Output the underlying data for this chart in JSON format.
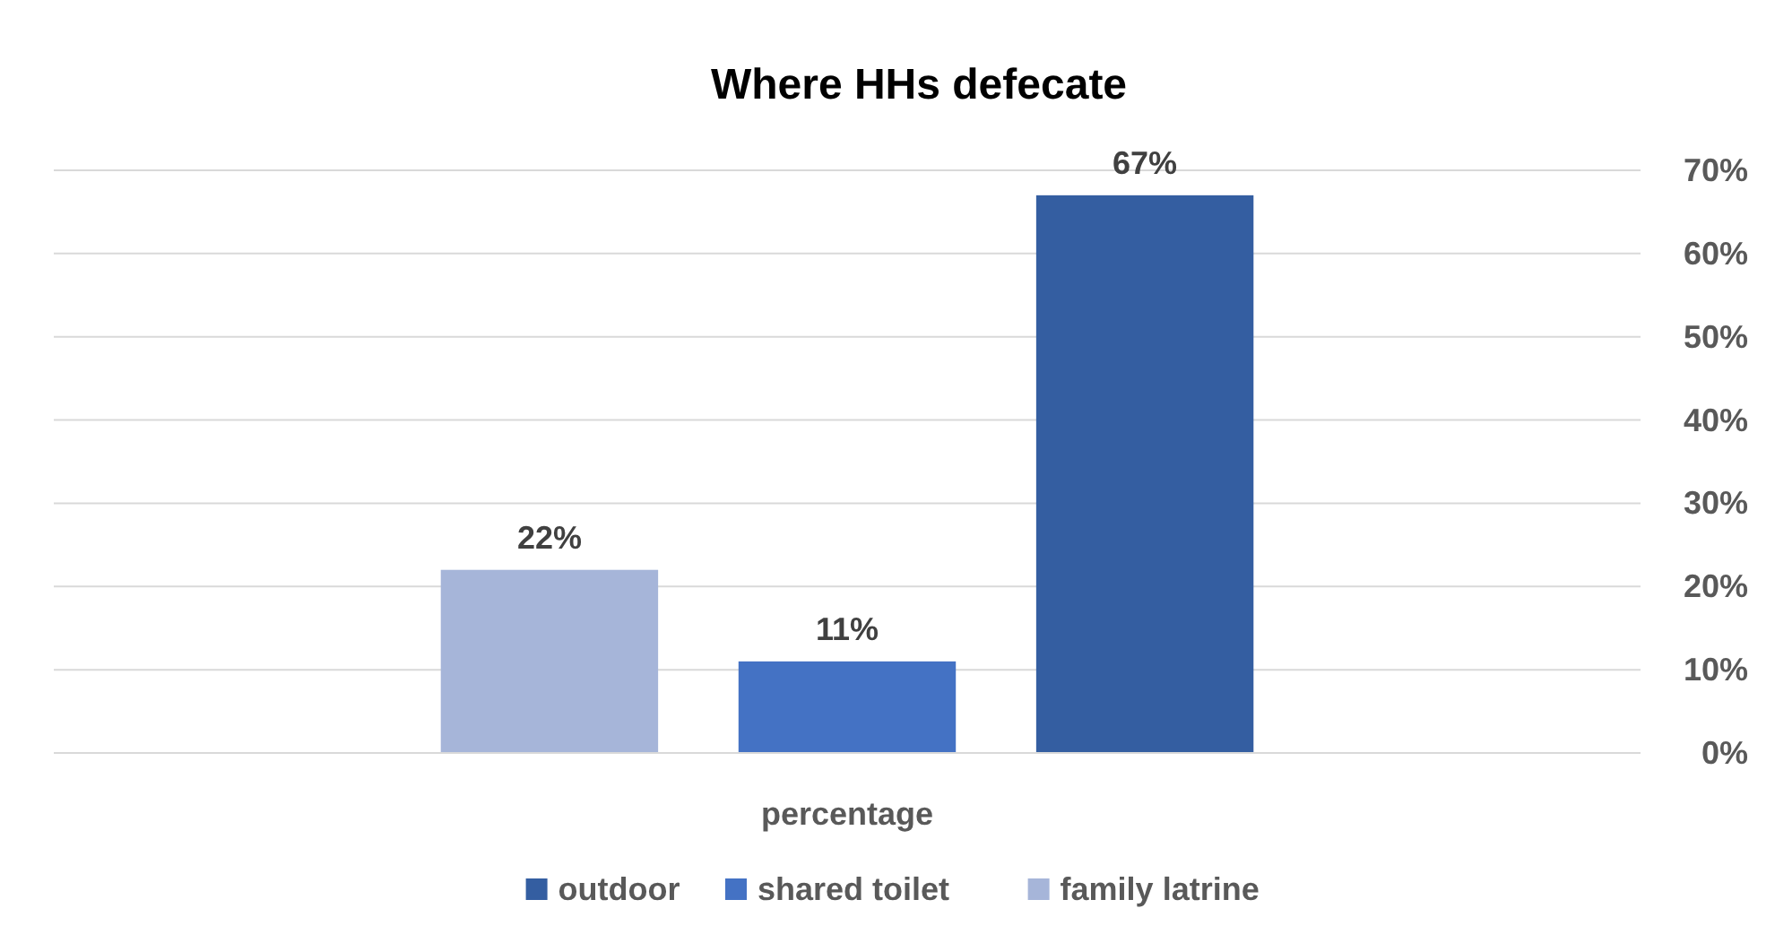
{
  "chart_data": {
    "type": "bar",
    "title": "Where HHs defecate",
    "categories": [
      "percentage"
    ],
    "series": [
      {
        "name": "family latrine",
        "color": "#a6b5d9",
        "values": [
          22
        ],
        "value_labels": [
          "22%"
        ]
      },
      {
        "name": "shared toilet",
        "color": "#4472c4",
        "values": [
          11
        ],
        "value_labels": [
          "11%"
        ]
      },
      {
        "name": "outdoor",
        "color": "#345ea1",
        "values": [
          67
        ],
        "value_labels": [
          "67%"
        ]
      }
    ],
    "ylim": [
      0,
      70
    ],
    "yticks": [
      {
        "value": 0,
        "label": "0%"
      },
      {
        "value": 10,
        "label": "10%"
      },
      {
        "value": 20,
        "label": "20%"
      },
      {
        "value": 30,
        "label": "30%"
      },
      {
        "value": 40,
        "label": "40%"
      },
      {
        "value": 50,
        "label": "50%"
      },
      {
        "value": 60,
        "label": "60%"
      },
      {
        "value": 70,
        "label": "70%"
      }
    ],
    "grid": "y",
    "legend": "bottom"
  }
}
